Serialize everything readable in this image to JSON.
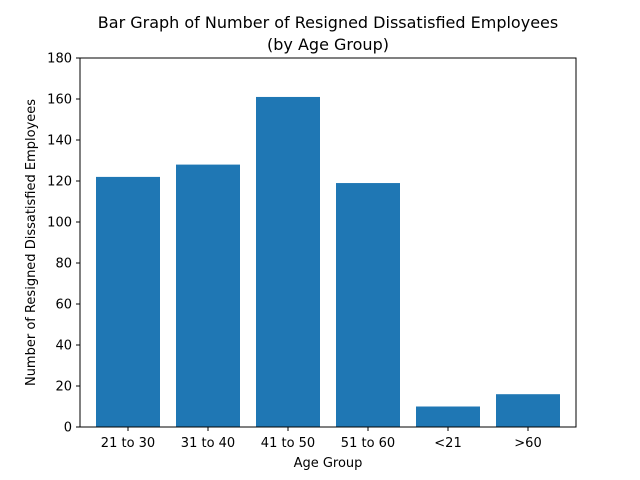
{
  "chart_data": {
    "type": "bar",
    "title_line1": "Bar Graph of Number of Resigned Dissatisfied Employees",
    "title_line2": "(by Age Group)",
    "xlabel": "Age Group",
    "ylabel": "Number of Resigned Dissatisfied Employees",
    "categories": [
      "21 to 30",
      "31 to 40",
      "41 to 50",
      "51 to 60",
      "<21",
      ">60"
    ],
    "values": [
      122,
      128,
      161,
      119,
      10,
      16
    ],
    "ylim": [
      0,
      180
    ],
    "yticks": [
      "0",
      "20",
      "40",
      "60",
      "80",
      "100",
      "120",
      "140",
      "160",
      "180"
    ],
    "bar_color": "#1f77b4",
    "grid": false,
    "legend": "none"
  }
}
